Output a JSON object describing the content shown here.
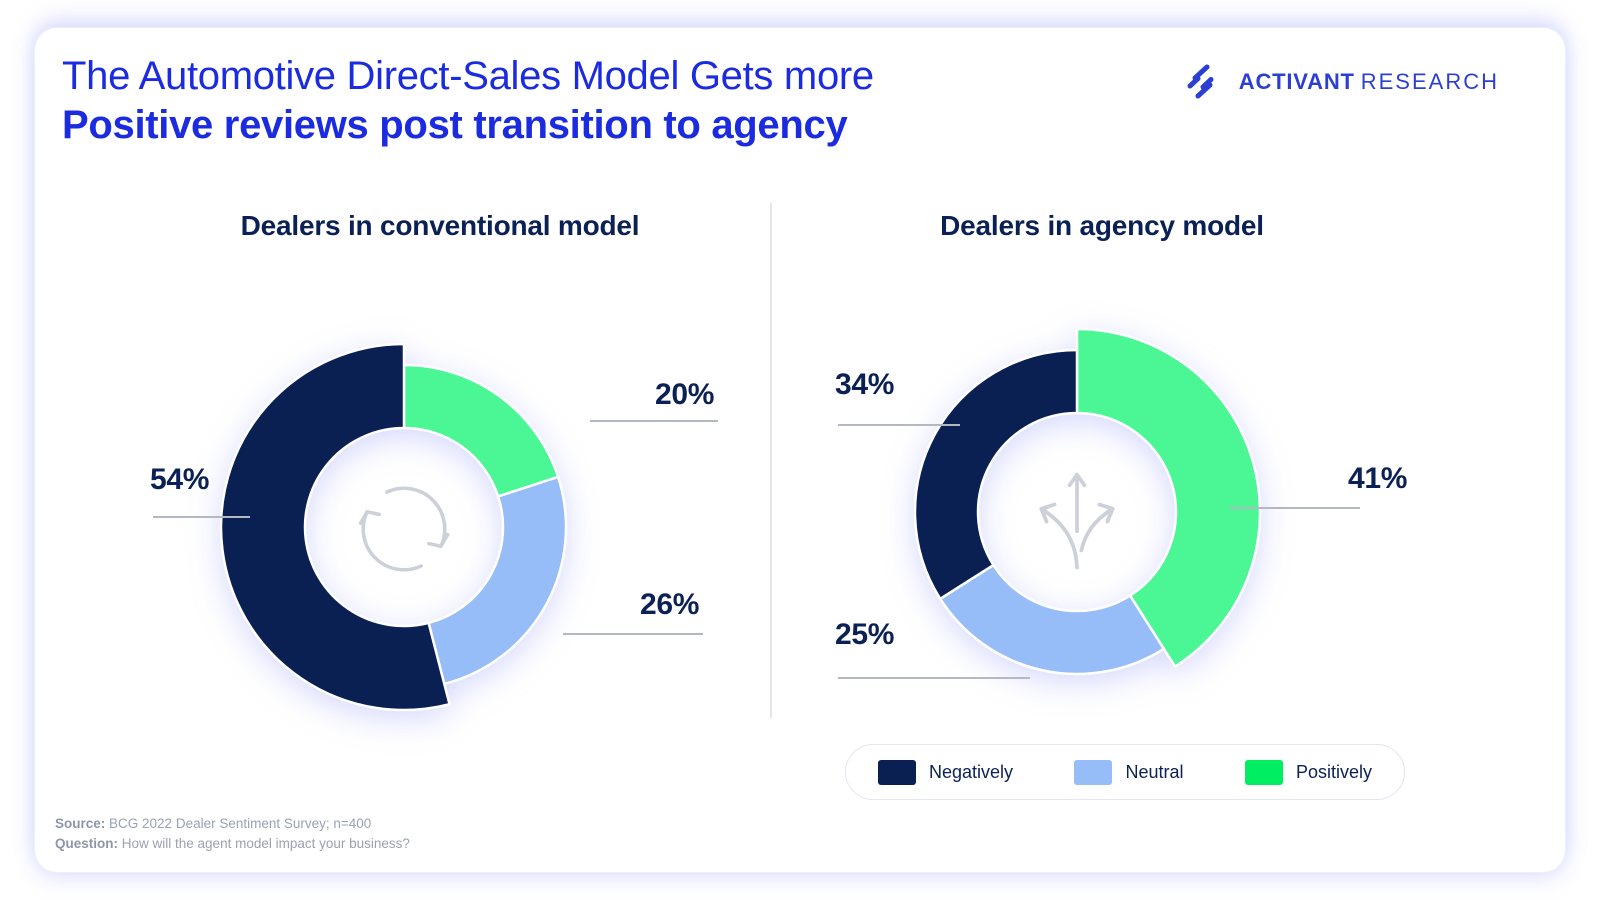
{
  "header": {
    "title_line1": "The Automotive Direct-Sales Model Gets more",
    "title_line2": "Positive reviews post transition to agency"
  },
  "logo": {
    "name_primary": "ACTIVANT",
    "name_secondary": "RESEARCH"
  },
  "chart_data": [
    {
      "type": "pie",
      "variant": "donut",
      "title": "Dealers in conventional model",
      "center_icon": "cycle-arrows-icon",
      "start_angle_deg": 0,
      "direction": "clockwise",
      "value_suffix": "%",
      "segments": [
        {
          "label": "Positively",
          "value": 20,
          "color": "#4bf795",
          "emphasized": false
        },
        {
          "label": "Neutral",
          "value": 26,
          "color": "#97bdf8",
          "emphasized": false
        },
        {
          "label": "Negatively",
          "value": 54,
          "color": "#0a1f52",
          "emphasized": true
        }
      ]
    },
    {
      "type": "pie",
      "variant": "donut",
      "title": "Dealers in agency model",
      "center_icon": "branching-arrows-icon",
      "start_angle_deg": 0,
      "direction": "clockwise",
      "value_suffix": "%",
      "segments": [
        {
          "label": "Positively",
          "value": 41,
          "color": "#4bf795",
          "emphasized": true
        },
        {
          "label": "Neutral",
          "value": 25,
          "color": "#97bdf8",
          "emphasized": false
        },
        {
          "label": "Negatively",
          "value": 34,
          "color": "#0a1f52",
          "emphasized": false
        }
      ]
    }
  ],
  "legend": {
    "items": [
      {
        "label": "Negatively",
        "color": "#0a1f52"
      },
      {
        "label": "Neutral",
        "color": "#97bdf8"
      },
      {
        "label": "Positively",
        "color": "#00ef62"
      }
    ]
  },
  "footer": {
    "source_label": "Source:",
    "source_text": "BCG 2022 Dealer Sentiment Survey; n=400",
    "question_label": "Question:",
    "question_text": "How will the agent model impact your business?"
  },
  "colors": {
    "title_blue": "#1b2be0",
    "logo_blue": "#2c3fd3",
    "navy": "#0a1f52",
    "light_blue": "#97bdf8",
    "chart_green": "#4bf795",
    "legend_green": "#00ef62",
    "leader_line_gray": "#b4b8c2",
    "icon_gray": "#ccd0d8"
  }
}
